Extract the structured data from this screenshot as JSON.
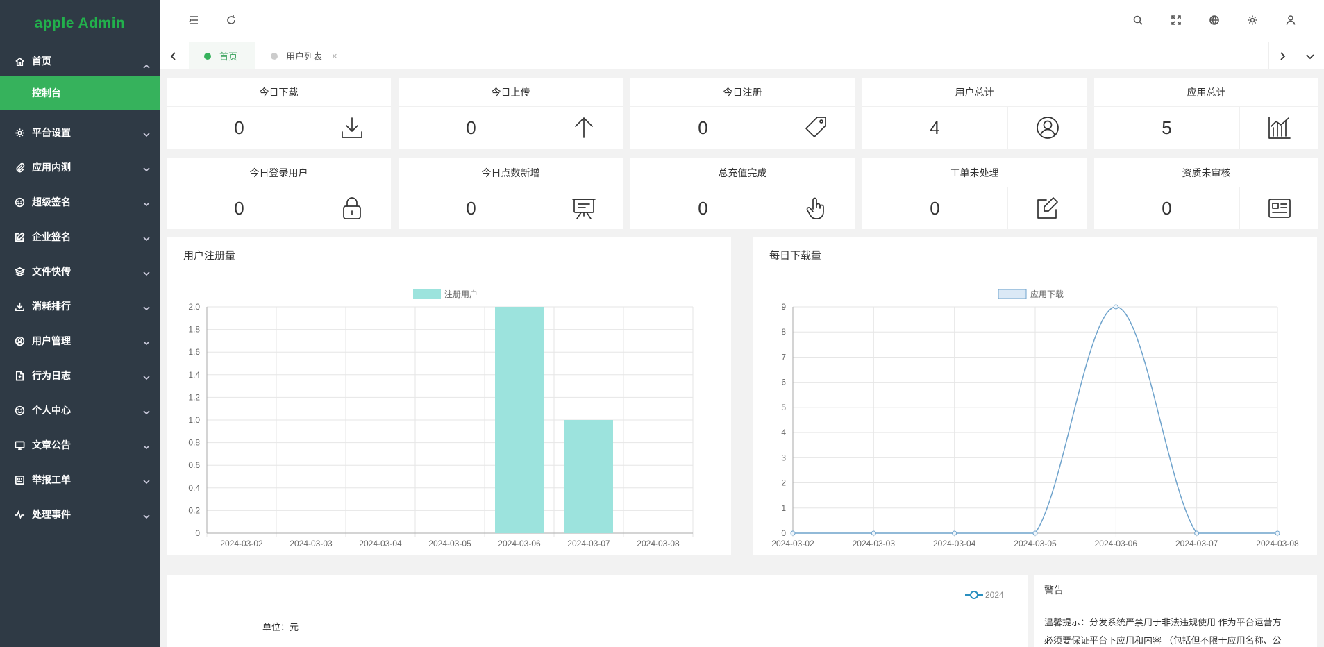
{
  "app": {
    "title": "apple Admin"
  },
  "sidebar": {
    "items": [
      {
        "label": "首页",
        "icon": "home-icon",
        "expanded": true
      },
      {
        "label": "平台设置",
        "icon": "gear-icon"
      },
      {
        "label": "应用内测",
        "icon": "paperclip-icon"
      },
      {
        "label": "超级签名",
        "icon": "face-icon"
      },
      {
        "label": "企业签名",
        "icon": "edit-icon"
      },
      {
        "label": "文件快传",
        "icon": "layers-icon"
      },
      {
        "label": "消耗排行",
        "icon": "download-icon"
      },
      {
        "label": "用户管理",
        "icon": "user-circle-icon"
      },
      {
        "label": "行为日志",
        "icon": "file-icon"
      },
      {
        "label": "个人中心",
        "icon": "smile-icon"
      },
      {
        "label": "文章公告",
        "icon": "monitor-icon"
      },
      {
        "label": "举报工单",
        "icon": "report-icon"
      },
      {
        "label": "处理事件",
        "icon": "activity-icon"
      }
    ],
    "sub_active": "控制台"
  },
  "tabs": [
    {
      "label": "首页",
      "active": true
    },
    {
      "label": "用户列表",
      "active": false,
      "close": "×"
    }
  ],
  "stats": [
    {
      "title": "今日下载",
      "value": "0",
      "icon": "download-icon"
    },
    {
      "title": "今日上传",
      "value": "0",
      "icon": "arrow-up-icon"
    },
    {
      "title": "今日注册",
      "value": "0",
      "icon": "tag-icon"
    },
    {
      "title": "用户总计",
      "value": "4",
      "icon": "user-circle-icon"
    },
    {
      "title": "应用总计",
      "value": "5",
      "icon": "chart-icon"
    },
    {
      "title": "今日登录用户",
      "value": "0",
      "icon": "lock-icon"
    },
    {
      "title": "今日点数新增",
      "value": "0",
      "icon": "presentation-icon"
    },
    {
      "title": "总充值完成",
      "value": "0",
      "icon": "hand-pointer-icon"
    },
    {
      "title": "工单未处理",
      "value": "0",
      "icon": "edit-icon"
    },
    {
      "title": "资质未审核",
      "value": "0",
      "icon": "id-card-icon"
    }
  ],
  "panels": {
    "registrations": {
      "title": "用户注册量"
    },
    "downloads": {
      "title": "每日下载量"
    },
    "notice": {
      "title": "警告",
      "line1": "温馨提示：分发系统严禁用于非法违规使用 作为平台运营方",
      "line2": "必须要保证平台下应用和内容 （包括但不限于应用名称、公"
    },
    "revenue": {
      "unit": "单位：元",
      "legend": "2024"
    }
  },
  "chart_data": [
    {
      "type": "bar",
      "legend": "注册用户",
      "categories": [
        "2024-03-02",
        "2024-03-03",
        "2024-03-04",
        "2024-03-05",
        "2024-03-06",
        "2024-03-07",
        "2024-03-08"
      ],
      "series": [
        {
          "name": "注册用户",
          "values": [
            0,
            0,
            0,
            0,
            2,
            1,
            0
          ]
        }
      ],
      "ylim": [
        0,
        2.0
      ],
      "yticks": [
        "0",
        "0.2",
        "0.4",
        "0.6",
        "0.8",
        "1.0",
        "1.2",
        "1.4",
        "1.6",
        "1.8",
        "2.0"
      ],
      "colors": {
        "bar": "#9ce3dd"
      },
      "grid": true,
      "legend_position": "top"
    },
    {
      "type": "line",
      "legend": "应用下载",
      "categories": [
        "2024-03-02",
        "2024-03-03",
        "2024-03-04",
        "2024-03-05",
        "2024-03-06",
        "2024-03-07",
        "2024-03-08"
      ],
      "series": [
        {
          "name": "应用下载",
          "values": [
            0,
            0,
            0,
            0,
            9,
            0,
            0
          ]
        }
      ],
      "ylim": [
        0,
        9
      ],
      "yticks": [
        "0",
        "1",
        "2",
        "3",
        "4",
        "5",
        "6",
        "7",
        "8",
        "9"
      ],
      "colors": {
        "line": "#6fa3cc",
        "legend_fill": "#dbe9f6"
      },
      "grid": true,
      "legend_position": "top"
    }
  ]
}
